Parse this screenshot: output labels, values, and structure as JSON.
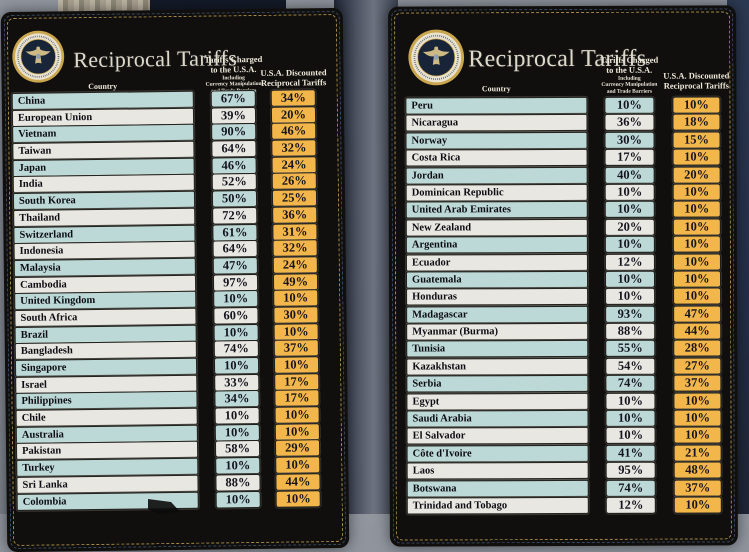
{
  "colors": {
    "board_bg": "#100f0d",
    "row_blue": "#bcd9d7",
    "row_white": "#e9e7e1",
    "gold": "#f3b64a",
    "border_gold": "#c2a254",
    "border_blue": "#5a7ca6",
    "title_text": "#ded9cb",
    "cell_text": "#14141e"
  },
  "header": {
    "title": "Reciprocal Tariffs",
    "country_label": "Country",
    "charged_line1": "Tariffs Charged",
    "charged_line2": "to the U.S.A.",
    "charged_sub1": "Including",
    "charged_sub2": "Currency Manipulation",
    "charged_sub3": "and Trade Barriers",
    "discounted_line1": "U.S.A. Discounted",
    "discounted_line2": "Reciprocal Tariffs",
    "seal_icon": "presidential-seal"
  },
  "chart_data": [
    {
      "type": "table",
      "title": "Reciprocal Tariffs (left board)",
      "columns": [
        "Country",
        "Tariffs Charged to the U.S.A. Including Currency Manipulation and Trade Barriers",
        "U.S.A. Discounted Reciprocal Tariffs"
      ],
      "rows": [
        [
          "China",
          "67%",
          "34%"
        ],
        [
          "European Union",
          "39%",
          "20%"
        ],
        [
          "Vietnam",
          "90%",
          "46%"
        ],
        [
          "Taiwan",
          "64%",
          "32%"
        ],
        [
          "Japan",
          "46%",
          "24%"
        ],
        [
          "India",
          "52%",
          "26%"
        ],
        [
          "South Korea",
          "50%",
          "25%"
        ],
        [
          "Thailand",
          "72%",
          "36%"
        ],
        [
          "Switzerland",
          "61%",
          "31%"
        ],
        [
          "Indonesia",
          "64%",
          "32%"
        ],
        [
          "Malaysia",
          "47%",
          "24%"
        ],
        [
          "Cambodia",
          "97%",
          "49%"
        ],
        [
          "United Kingdom",
          "10%",
          "10%"
        ],
        [
          "South Africa",
          "60%",
          "30%"
        ],
        [
          "Brazil",
          "10%",
          "10%"
        ],
        [
          "Bangladesh",
          "74%",
          "37%"
        ],
        [
          "Singapore",
          "10%",
          "10%"
        ],
        [
          "Israel",
          "33%",
          "17%"
        ],
        [
          "Philippines",
          "34%",
          "17%"
        ],
        [
          "Chile",
          "10%",
          "10%"
        ],
        [
          "Australia",
          "10%",
          "10%"
        ],
        [
          "Pakistan",
          "58%",
          "29%"
        ],
        [
          "Turkey",
          "10%",
          "10%"
        ],
        [
          "Sri Lanka",
          "88%",
          "44%"
        ],
        [
          "Colombia",
          "10%",
          "10%"
        ]
      ]
    },
    {
      "type": "table",
      "title": "Reciprocal Tariffs (right board)",
      "columns": [
        "Country",
        "Tariffs Charged to the U.S.A. Including Currency Manipulation and Trade Barriers",
        "U.S.A. Discounted Reciprocal Tariffs"
      ],
      "rows": [
        [
          "Peru",
          "10%",
          "10%"
        ],
        [
          "Nicaragua",
          "36%",
          "18%"
        ],
        [
          "Norway",
          "30%",
          "15%"
        ],
        [
          "Costa Rica",
          "17%",
          "10%"
        ],
        [
          "Jordan",
          "40%",
          "20%"
        ],
        [
          "Dominican Republic",
          "10%",
          "10%"
        ],
        [
          "United Arab Emirates",
          "10%",
          "10%"
        ],
        [
          "New Zealand",
          "20%",
          "10%"
        ],
        [
          "Argentina",
          "10%",
          "10%"
        ],
        [
          "Ecuador",
          "12%",
          "10%"
        ],
        [
          "Guatemala",
          "10%",
          "10%"
        ],
        [
          "Honduras",
          "10%",
          "10%"
        ],
        [
          "Madagascar",
          "93%",
          "47%"
        ],
        [
          "Myanmar (Burma)",
          "88%",
          "44%"
        ],
        [
          "Tunisia",
          "55%",
          "28%"
        ],
        [
          "Kazakhstan",
          "54%",
          "27%"
        ],
        [
          "Serbia",
          "74%",
          "37%"
        ],
        [
          "Egypt",
          "10%",
          "10%"
        ],
        [
          "Saudi Arabia",
          "10%",
          "10%"
        ],
        [
          "El Salvador",
          "10%",
          "10%"
        ],
        [
          "Côte d'Ivoire",
          "41%",
          "21%"
        ],
        [
          "Laos",
          "95%",
          "48%"
        ],
        [
          "Botswana",
          "74%",
          "37%"
        ],
        [
          "Trinidad and Tobago",
          "12%",
          "10%"
        ]
      ]
    }
  ]
}
